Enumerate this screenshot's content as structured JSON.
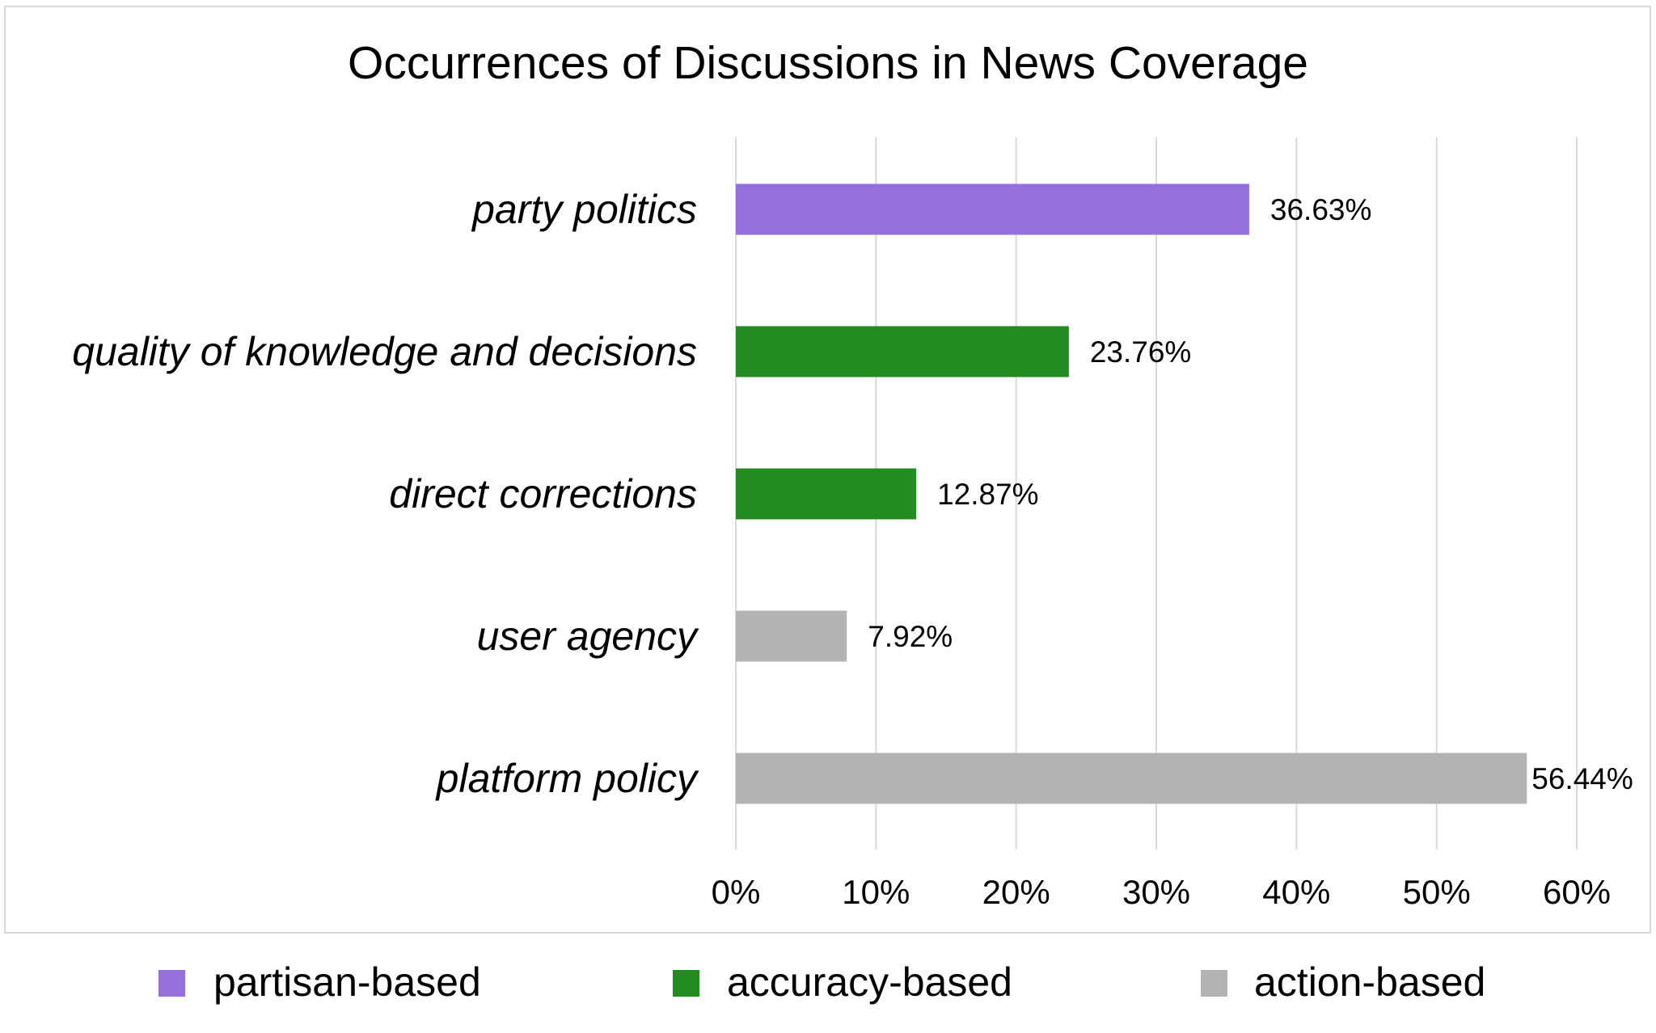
{
  "chart_data": {
    "type": "bar",
    "orientation": "horizontal",
    "title": "Occurrences of Discussions in News Coverage",
    "categories": [
      "party politics",
      "quality of knowledge and decisions",
      "direct corrections",
      "user agency",
      "platform policy"
    ],
    "values": [
      36.63,
      23.76,
      12.87,
      7.92,
      56.44
    ],
    "data_labels": [
      "36.63%",
      "23.76%",
      "12.87%",
      "7.92%",
      "56.44%"
    ],
    "bar_groups": [
      "partisan-based",
      "accuracy-based",
      "accuracy-based",
      "action-based",
      "action-based"
    ],
    "xlim": [
      0,
      60
    ],
    "x_ticks": [
      0,
      10,
      20,
      30,
      40,
      50,
      60
    ],
    "x_tick_labels": [
      "0%",
      "10%",
      "20%",
      "30%",
      "40%",
      "50%",
      "60%"
    ],
    "xlabel": "",
    "ylabel": "",
    "grid": "vertical",
    "legend_placement": "bottom",
    "legend": [
      {
        "name": "partisan-based",
        "color": "#9370DB"
      },
      {
        "name": "accuracy-based",
        "color": "#228B22"
      },
      {
        "name": "action-based",
        "color": "#B3B3B3"
      }
    ]
  }
}
